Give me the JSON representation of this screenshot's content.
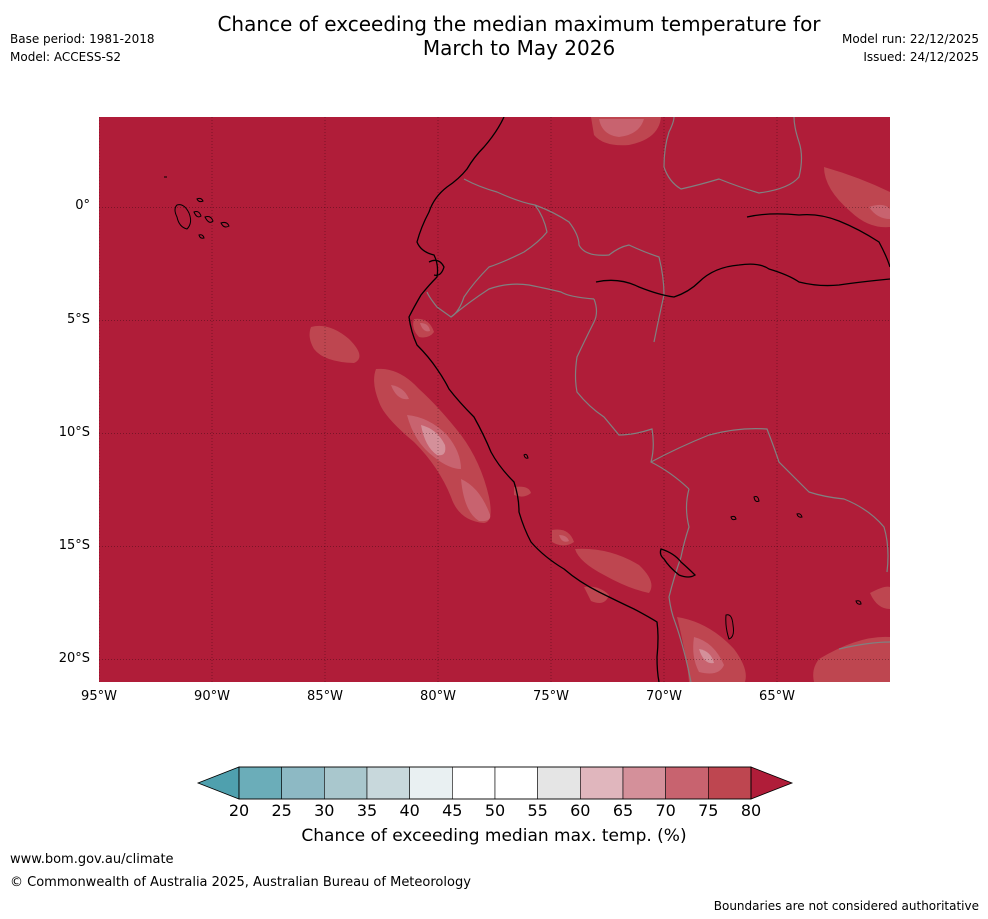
{
  "title": {
    "line1": "Chance of exceeding the median maximum temperature for",
    "line2": "March to May 2026"
  },
  "meta": {
    "base_period": "Base period: 1981-2018",
    "model": "Model: ACCESS-S2",
    "model_run": "Model run: 22/12/2025",
    "issued": "Issued: 24/12/2025"
  },
  "map": {
    "lon_range": [
      -95,
      -60
    ],
    "lat_range": [
      -21,
      4
    ],
    "x_ticks": [
      "95°W",
      "90°W",
      "85°W",
      "80°W",
      "75°W",
      "70°W",
      "65°W"
    ],
    "y_ticks": [
      "0°",
      "5°S",
      "10°S",
      "15°S",
      "20°S"
    ],
    "grid": true,
    "dominant_category": ">80%",
    "colors": {
      "c60_65": "#e0b6bd",
      "c65_70": "#d4909a",
      "c70_75": "#c8636f",
      "c75_80": "#be4650",
      "c80plus": "#b01d39",
      "coastline": "#000000",
      "boundaries": "#808080"
    }
  },
  "colorbar": {
    "label": "Chance of exceeding median max. temp. (%)",
    "ticks": [
      "20",
      "25",
      "30",
      "35",
      "40",
      "45",
      "50",
      "55",
      "60",
      "65",
      "70",
      "75",
      "80"
    ],
    "under_color": "#4fa0ae",
    "over_color": "#b01d39",
    "colors": [
      "#6badb9",
      "#8db9c4",
      "#a9c7cd",
      "#c8d8dc",
      "#e9f0f2",
      "#ffffff",
      "#ffffff",
      "#e5e5e5",
      "#e0b6bd",
      "#d4909a",
      "#c8636f",
      "#be4650"
    ]
  },
  "footer": {
    "url": "www.bom.gov.au/climate",
    "copyright": "© Commonwealth of Australia 2025, Australian Bureau of Meteorology",
    "disclaimer": "Boundaries are not considered authoritative"
  }
}
